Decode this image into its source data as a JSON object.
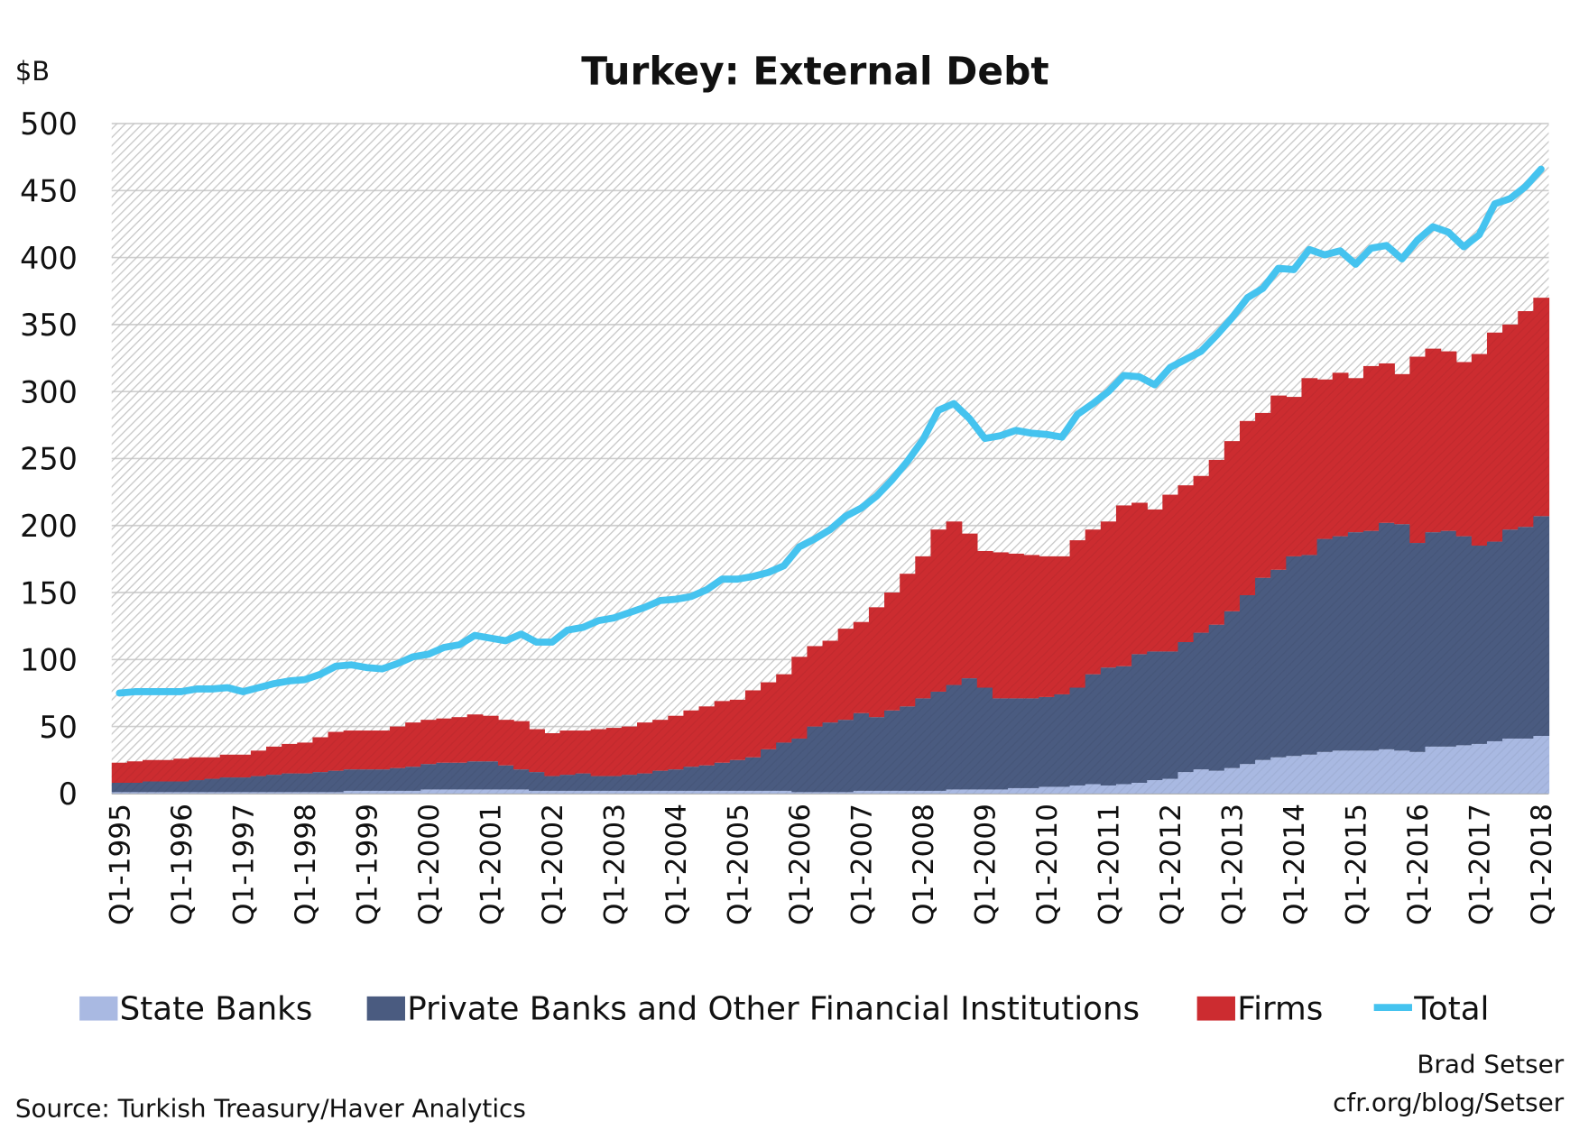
{
  "chart_data": {
    "type": "area",
    "stacked": true,
    "title": "Turkey: External Debt",
    "ylabel": "$B",
    "xlabel": "",
    "ylim": [
      0,
      500
    ],
    "yticks": [
      0,
      50,
      100,
      150,
      200,
      250,
      300,
      350,
      400,
      450,
      500
    ],
    "grid": true,
    "legend_position": "bottom",
    "start_quarter": "Q1-1995",
    "xtick_labels": [
      "Q1-1995",
      "Q1-1996",
      "Q1-1997",
      "Q1-1998",
      "Q1-1999",
      "Q1-2000",
      "Q1-2001",
      "Q1-2002",
      "Q1-2003",
      "Q1-2004",
      "Q1-2005",
      "Q1-2006",
      "Q1-2007",
      "Q1-2008",
      "Q1-2009",
      "Q1-2010",
      "Q1-2011",
      "Q1-2012",
      "Q1-2013",
      "Q1-2014",
      "Q1-2015",
      "Q1-2016",
      "Q1-2017",
      "Q1-2018"
    ],
    "series": [
      {
        "name": "State Banks",
        "kind": "stacked-area",
        "color": "#a9b9e2",
        "values": [
          1,
          1,
          1,
          1,
          1,
          1,
          1,
          1,
          1,
          1,
          1,
          1,
          1,
          1,
          1,
          2,
          2,
          2,
          2,
          2,
          3,
          3,
          3,
          3,
          3,
          3,
          3,
          2,
          2,
          2,
          2,
          2,
          2,
          2,
          2,
          2,
          2,
          2,
          2,
          2,
          2,
          2,
          2,
          2,
          1,
          1,
          1,
          1,
          2,
          2,
          2,
          2,
          2,
          2,
          3,
          3,
          3,
          3,
          4,
          4,
          5,
          5,
          6,
          7,
          6,
          7,
          8,
          10,
          11,
          16,
          18,
          17,
          19,
          22,
          25,
          27,
          28,
          29,
          31,
          32,
          32,
          32,
          33,
          32,
          31,
          35,
          35,
          36,
          37,
          39,
          41,
          41,
          43
        ]
      },
      {
        "name": "Private Banks and Other Financial Institutions",
        "kind": "stacked-area",
        "color": "#4a5b80",
        "values": [
          7,
          7,
          8,
          8,
          8,
          9,
          10,
          11,
          11,
          12,
          13,
          14,
          14,
          15,
          16,
          16,
          16,
          16,
          17,
          18,
          19,
          20,
          20,
          21,
          21,
          18,
          15,
          14,
          11,
          12,
          13,
          11,
          11,
          12,
          13,
          15,
          16,
          18,
          19,
          21,
          23,
          25,
          31,
          36,
          40,
          49,
          52,
          54,
          58,
          55,
          60,
          63,
          69,
          74,
          78,
          83,
          76,
          68,
          67,
          67,
          67,
          69,
          73,
          82,
          88,
          88,
          96,
          96,
          95,
          97,
          102,
          109,
          117,
          126,
          136,
          140,
          149,
          149,
          159,
          160,
          163,
          164,
          169,
          169,
          156,
          160,
          161,
          156,
          148,
          149,
          156,
          158,
          164
        ]
      },
      {
        "name": "Firms",
        "kind": "stacked-area",
        "color": "#cc2c30",
        "values": [
          15,
          16,
          16,
          16,
          17,
          17,
          16,
          17,
          17,
          19,
          21,
          22,
          23,
          26,
          29,
          29,
          29,
          29,
          31,
          33,
          33,
          33,
          34,
          35,
          34,
          34,
          36,
          32,
          32,
          33,
          32,
          35,
          36,
          36,
          38,
          38,
          40,
          42,
          44,
          46,
          45,
          50,
          50,
          51,
          61,
          60,
          61,
          68,
          68,
          82,
          88,
          99,
          106,
          121,
          122,
          108,
          102,
          109,
          108,
          107,
          105,
          103,
          110,
          108,
          109,
          120,
          113,
          106,
          117,
          117,
          117,
          123,
          127,
          130,
          123,
          130,
          119,
          132,
          119,
          122,
          115,
          123,
          119,
          112,
          139,
          137,
          134,
          130,
          143,
          156,
          153,
          161,
          163
        ]
      },
      {
        "name": "Total",
        "kind": "line",
        "color": "#45c3ef",
        "values": [
          75,
          76,
          76,
          76,
          76,
          78,
          78,
          79,
          76,
          79,
          82,
          84,
          85,
          89,
          95,
          96,
          94,
          93,
          97,
          102,
          104,
          109,
          111,
          118,
          116,
          114,
          119,
          113,
          113,
          122,
          124,
          129,
          131,
          135,
          139,
          144,
          145,
          147,
          152,
          160,
          160,
          162,
          165,
          170,
          184,
          190,
          197,
          207,
          213,
          222,
          234,
          248,
          264,
          286,
          291,
          280,
          265,
          267,
          271,
          269,
          268,
          266,
          283,
          291,
          300,
          312,
          311,
          305,
          318,
          324,
          330,
          342,
          355,
          370,
          377,
          392,
          391,
          406,
          402,
          405,
          395,
          407,
          409,
          399,
          413,
          423,
          419,
          408,
          417,
          440,
          444,
          453,
          466
        ]
      }
    ]
  },
  "footer": {
    "source": "Source: Turkish Treasury/Haver Analytics",
    "author": "Brad Setser",
    "site": "cfr.org/blog/Setser"
  }
}
